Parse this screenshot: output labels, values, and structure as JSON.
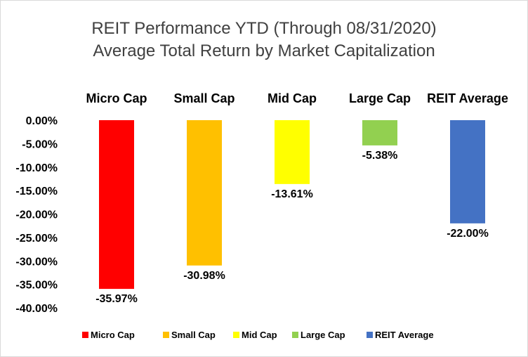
{
  "chart_data": {
    "type": "bar",
    "title": "REIT Performance YTD (Through 08/31/2020)",
    "subtitle": "Average Total Return by Market Capitalization",
    "categories": [
      "Micro Cap",
      "Small Cap",
      "Mid Cap",
      "Large Cap",
      "REIT Average"
    ],
    "values": [
      -35.97,
      -30.98,
      -13.61,
      -5.38,
      -22.0
    ],
    "data_labels": [
      "-35.97%",
      "-30.98%",
      "-13.61%",
      "-5.38%",
      "-22.00%"
    ],
    "colors": [
      "#ff0000",
      "#ffc000",
      "#ffff00",
      "#92d050",
      "#4472c4"
    ],
    "yticks": [
      0,
      -5,
      -10,
      -15,
      -20,
      -25,
      -30,
      -35,
      -40
    ],
    "ytick_labels": [
      "0.00%",
      "-5.00%",
      "-10.00%",
      "-15.00%",
      "-20.00%",
      "-25.00%",
      "-30.00%",
      "-35.00%",
      "-40.00%"
    ],
    "ylim": [
      -40,
      0
    ],
    "xlabel": "",
    "ylabel": "",
    "grid": false,
    "category_labels_position": "top",
    "legend": {
      "position": "bottom",
      "entries": [
        "Micro Cap",
        "Small Cap",
        "Mid Cap",
        "Large Cap",
        "REIT Average"
      ]
    }
  }
}
